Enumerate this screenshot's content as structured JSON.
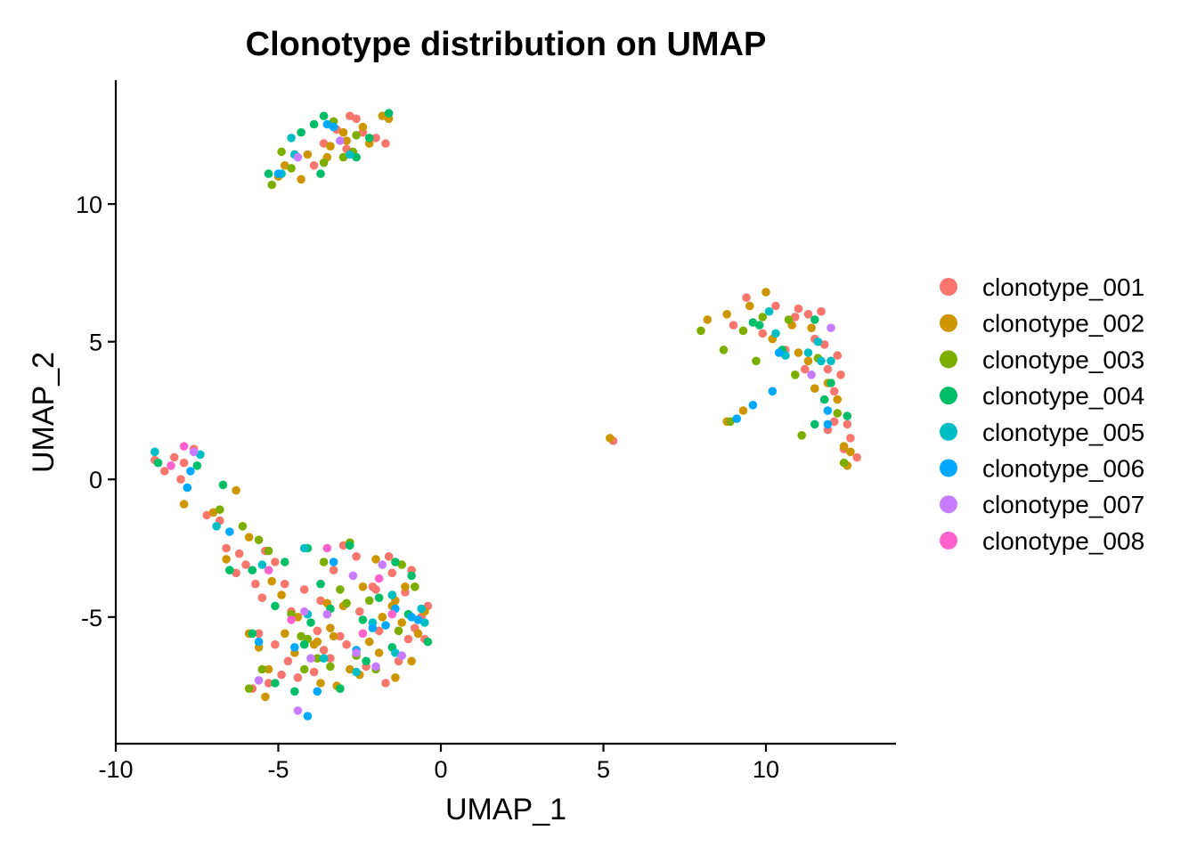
{
  "chart_data": {
    "type": "scatter",
    "title": "Clonotype distribution on UMAP",
    "xlabel": "UMAP_1",
    "ylabel": "UMAP_2",
    "xlim": [
      -10,
      14
    ],
    "ylim": [
      -9.6,
      14.5
    ],
    "x_ticks": [
      -10,
      -5,
      0,
      5,
      10
    ],
    "x_tick_labels": [
      "-10",
      "-5",
      "0",
      "5",
      "10"
    ],
    "y_ticks": [
      -5,
      0,
      5,
      10
    ],
    "y_tick_labels": [
      "-5",
      "0",
      "5",
      "10"
    ],
    "grid": false,
    "legend_position": "right",
    "series": [
      {
        "name": "clonotype_001",
        "color": "#F8766D",
        "points": [
          [
            -2.8,
            13.2
          ],
          [
            -2.6,
            13.1
          ],
          [
            -3.2,
            12.7
          ],
          [
            -2.0,
            12.4
          ],
          [
            -1.7,
            12.2
          ],
          [
            -3.6,
            12.2
          ],
          [
            -4.5,
            11.8
          ],
          [
            -2.9,
            12.0
          ],
          [
            -3.9,
            11.4
          ],
          [
            -2.4,
            12.6
          ],
          [
            -8.8,
            0.7
          ],
          [
            -8.2,
            0.8
          ],
          [
            -7.6,
            1.1
          ],
          [
            -8.5,
            0.3
          ],
          [
            -7.9,
            0.6
          ],
          [
            -8.0,
            0.0
          ],
          [
            -7.2,
            -1.3
          ],
          [
            -6.8,
            -1.5
          ],
          [
            -6.6,
            -2.5
          ],
          [
            -6.2,
            -2.7
          ],
          [
            -6.0,
            -3.1
          ],
          [
            -5.7,
            -3.8
          ],
          [
            -5.4,
            -2.6
          ],
          [
            -5.1,
            -3.0
          ],
          [
            -4.8,
            -3.8
          ],
          [
            -5.6,
            -5.6
          ],
          [
            -5.1,
            -6.0
          ],
          [
            -4.7,
            -6.6
          ],
          [
            -4.4,
            -7.2
          ],
          [
            -3.9,
            -7.0
          ],
          [
            -3.4,
            -6.5
          ],
          [
            -2.9,
            -6.0
          ],
          [
            -2.3,
            -6.8
          ],
          [
            -1.7,
            -7.4
          ],
          [
            -1.3,
            -6.6
          ],
          [
            -0.8,
            -5.4
          ],
          [
            -0.5,
            -5.8
          ],
          [
            -0.4,
            -4.6
          ],
          [
            -1.1,
            -4.1
          ],
          [
            -1.5,
            -3.4
          ],
          [
            -2.0,
            -4.0
          ],
          [
            -2.5,
            -4.8
          ],
          [
            -3.1,
            -5.7
          ],
          [
            -3.7,
            -4.4
          ],
          [
            -4.2,
            -4.0
          ],
          [
            -4.6,
            -4.8
          ],
          [
            -3.3,
            -3.3
          ],
          [
            -2.1,
            -3.9
          ],
          [
            -1.9,
            -5.5
          ],
          [
            -1.0,
            -5.8
          ],
          [
            -5.8,
            -7.6
          ],
          [
            -5.3,
            -7.4
          ],
          [
            -4.9,
            -7.1
          ],
          [
            -3.6,
            -6.2
          ],
          [
            -1.6,
            -2.8
          ],
          [
            -0.9,
            -3.3
          ],
          [
            -2.6,
            -2.8
          ],
          [
            -3.8,
            -5.5
          ],
          [
            -5.5,
            -4.3
          ],
          [
            -6.3,
            -3.4
          ],
          [
            9.4,
            6.6
          ],
          [
            10.3,
            6.3
          ],
          [
            11.0,
            6.2
          ],
          [
            11.3,
            6.0
          ],
          [
            11.7,
            6.1
          ],
          [
            10.9,
            5.9
          ],
          [
            11.5,
            5.1
          ],
          [
            11.8,
            4.9
          ],
          [
            12.2,
            4.5
          ],
          [
            11.9,
            4.0
          ],
          [
            12.3,
            3.8
          ],
          [
            12.1,
            3.2
          ],
          [
            12.5,
            2.0
          ],
          [
            12.6,
            1.5
          ],
          [
            12.8,
            0.8
          ],
          [
            12.4,
            1.1
          ],
          [
            11.9,
            1.8
          ],
          [
            11.2,
            4.0
          ],
          [
            10.6,
            4.7
          ],
          [
            9.9,
            5.3
          ],
          [
            9.0,
            5.6
          ],
          [
            5.3,
            1.4
          ],
          [
            12.1,
            2.1
          ],
          [
            -0.6,
            -5.0
          ],
          [
            -3.0,
            -2.4
          ]
        ]
      },
      {
        "name": "clonotype_002",
        "color": "#CD9600",
        "points": [
          [
            -1.8,
            13.2
          ],
          [
            -1.6,
            13.1
          ],
          [
            -2.4,
            12.8
          ],
          [
            -3.0,
            12.6
          ],
          [
            -3.4,
            12.1
          ],
          [
            -2.2,
            12.2
          ],
          [
            -4.1,
            11.8
          ],
          [
            -4.8,
            11.4
          ],
          [
            -5.0,
            11.0
          ],
          [
            -4.3,
            10.9
          ],
          [
            -3.5,
            11.7
          ],
          [
            -2.9,
            12.3
          ],
          [
            -7.9,
            -0.9
          ],
          [
            -7.0,
            -1.2
          ],
          [
            -6.3,
            -0.4
          ],
          [
            -6.6,
            -2.9
          ],
          [
            -5.9,
            -2.1
          ],
          [
            -5.2,
            -3.7
          ],
          [
            -4.4,
            -5.0
          ],
          [
            -4.8,
            -5.6
          ],
          [
            -3.9,
            -6.0
          ],
          [
            -3.4,
            -5.4
          ],
          [
            -2.8,
            -6.9
          ],
          [
            -2.2,
            -5.9
          ],
          [
            -1.8,
            -5.0
          ],
          [
            -1.2,
            -5.2
          ],
          [
            -0.7,
            -5.6
          ],
          [
            -0.5,
            -4.8
          ],
          [
            -1.5,
            -4.6
          ],
          [
            -2.4,
            -3.9
          ],
          [
            -3.0,
            -4.6
          ],
          [
            -3.5,
            -4.5
          ],
          [
            -4.9,
            -4.2
          ],
          [
            -5.6,
            -6.1
          ],
          [
            -5.3,
            -6.9
          ],
          [
            -4.5,
            -6.3
          ],
          [
            -3.7,
            -7.4
          ],
          [
            -3.2,
            -7.5
          ],
          [
            -2.5,
            -7.1
          ],
          [
            -1.9,
            -6.3
          ],
          [
            -1.4,
            -7.2
          ],
          [
            -0.9,
            -6.6
          ],
          [
            -5.9,
            -5.6
          ],
          [
            -5.4,
            -7.9
          ],
          [
            -3.3,
            -5.7
          ],
          [
            -2.0,
            -2.9
          ],
          [
            -1.1,
            -3.9
          ],
          [
            8.2,
            5.8
          ],
          [
            8.8,
            6.0
          ],
          [
            9.5,
            6.3
          ],
          [
            10.0,
            6.8
          ],
          [
            10.8,
            5.6
          ],
          [
            11.4,
            5.5
          ],
          [
            11.9,
            3.5
          ],
          [
            12.2,
            2.9
          ],
          [
            12.4,
            1.2
          ],
          [
            12.5,
            0.5
          ],
          [
            12.6,
            1.0
          ],
          [
            11.5,
            3.3
          ],
          [
            10.5,
            4.6
          ],
          [
            10.2,
            5.1
          ],
          [
            11.0,
            4.6
          ],
          [
            11.3,
            4.3
          ],
          [
            9.3,
            2.5
          ],
          [
            8.8,
            2.1
          ],
          [
            5.2,
            1.5
          ],
          [
            -3.8,
            -5.9
          ],
          [
            -1.4,
            -4.4
          ]
        ]
      },
      {
        "name": "clonotype_003",
        "color": "#7CAE00",
        "points": [
          [
            -5.2,
            10.7
          ],
          [
            -4.6,
            11.3
          ],
          [
            -3.6,
            11.5
          ],
          [
            -3.0,
            11.7
          ],
          [
            -2.6,
            12.5
          ],
          [
            -3.3,
            13.0
          ],
          [
            -4.9,
            11.9
          ],
          [
            -2.7,
            11.9
          ],
          [
            -6.8,
            -1.1
          ],
          [
            -6.1,
            -1.7
          ],
          [
            -5.6,
            -2.2
          ],
          [
            -5.3,
            -2.6
          ],
          [
            -4.6,
            -4.9
          ],
          [
            -4.3,
            -5.7
          ],
          [
            -3.8,
            -6.5
          ],
          [
            -2.9,
            -4.5
          ],
          [
            -2.2,
            -4.4
          ],
          [
            -1.5,
            -4.2
          ],
          [
            -0.8,
            -3.9
          ],
          [
            -1.3,
            -5.5
          ],
          [
            -2.0,
            -6.9
          ],
          [
            -2.6,
            -6.4
          ],
          [
            -3.4,
            -6.8
          ],
          [
            -4.2,
            -6.9
          ],
          [
            -5.5,
            -6.9
          ],
          [
            -5.9,
            -7.6
          ],
          [
            -3.1,
            -4.0
          ],
          [
            -1.2,
            -3.1
          ],
          [
            -2.8,
            -2.3
          ],
          [
            -3.6,
            -3.0
          ],
          [
            8.0,
            5.4
          ],
          [
            8.7,
            4.7
          ],
          [
            9.3,
            5.4
          ],
          [
            9.9,
            5.9
          ],
          [
            10.7,
            5.8
          ],
          [
            11.6,
            4.4
          ],
          [
            12.2,
            2.4
          ],
          [
            12.4,
            0.6
          ],
          [
            11.1,
            1.6
          ],
          [
            9.7,
            4.3
          ],
          [
            10.9,
            3.8
          ],
          [
            8.9,
            2.1
          ],
          [
            -4.1,
            -5.8
          ]
        ]
      },
      {
        "name": "clonotype_004",
        "color": "#00BE67",
        "points": [
          [
            -3.9,
            12.9
          ],
          [
            -3.6,
            13.2
          ],
          [
            -2.2,
            12.4
          ],
          [
            -1.6,
            13.3
          ],
          [
            -4.3,
            12.6
          ],
          [
            -2.6,
            11.7
          ],
          [
            -5.3,
            11.1
          ],
          [
            -3.7,
            11.1
          ],
          [
            -8.7,
            0.6
          ],
          [
            -7.5,
            0.5
          ],
          [
            -6.7,
            -0.2
          ],
          [
            -6.5,
            -3.3
          ],
          [
            -5.8,
            -3.3
          ],
          [
            -5.1,
            -4.6
          ],
          [
            -4.1,
            -2.5
          ],
          [
            -4.0,
            -5.2
          ],
          [
            -3.7,
            -3.8
          ],
          [
            -2.8,
            -2.4
          ],
          [
            -1.4,
            -3.0
          ],
          [
            -1.9,
            -4.3
          ],
          [
            -1.0,
            -4.9
          ],
          [
            -0.4,
            -5.9
          ],
          [
            -1.5,
            -6.1
          ],
          [
            -2.3,
            -6.6
          ],
          [
            -3.1,
            -7.6
          ],
          [
            -4.5,
            -7.7
          ],
          [
            -5.1,
            -7.4
          ],
          [
            -4.2,
            -6.0
          ],
          [
            -3.4,
            -4.7
          ],
          [
            -2.4,
            -5.1
          ],
          [
            -5.8,
            -5.6
          ],
          [
            -4.8,
            -3.0
          ],
          [
            9.6,
            5.7
          ],
          [
            9.8,
            5.6
          ],
          [
            11.5,
            5.8
          ],
          [
            11.8,
            2.9
          ],
          [
            12.5,
            2.3
          ],
          [
            10.5,
            4.7
          ],
          [
            12.0,
            3.5
          ],
          [
            11.5,
            2.0
          ],
          [
            -0.9,
            -3.5
          ]
        ]
      },
      {
        "name": "clonotype_005",
        "color": "#00BFC4",
        "points": [
          [
            -4.6,
            12.4
          ],
          [
            -3.3,
            12.8
          ],
          [
            -2.8,
            11.8
          ],
          [
            -4.9,
            11.1
          ],
          [
            -4.5,
            11.8
          ],
          [
            -8.8,
            1.0
          ],
          [
            -7.4,
            0.9
          ],
          [
            -6.9,
            -1.7
          ],
          [
            -5.5,
            -3.1
          ],
          [
            -4.2,
            -2.5
          ],
          [
            -3.6,
            -6.5
          ],
          [
            -2.6,
            -7.0
          ],
          [
            -1.4,
            -6.3
          ],
          [
            -0.6,
            -4.7
          ],
          [
            -1.5,
            -4.2
          ],
          [
            -4.1,
            -4.9
          ],
          [
            -0.5,
            -5.2
          ],
          [
            10.3,
            5.3
          ],
          [
            10.6,
            4.5
          ],
          [
            11.7,
            4.3
          ],
          [
            12.0,
            4.3
          ],
          [
            11.6,
            5.0
          ],
          [
            10.1,
            6.1
          ],
          [
            11.3,
            4.6
          ],
          [
            -2.1,
            -5.2
          ]
        ]
      },
      {
        "name": "clonotype_006",
        "color": "#00A9FF",
        "points": [
          [
            -3.5,
            12.9
          ],
          [
            -3.3,
            12.8
          ],
          [
            -5.0,
            11.1
          ],
          [
            -7.7,
            0.3
          ],
          [
            -6.5,
            -1.9
          ],
          [
            -7.8,
            -0.3
          ],
          [
            -5.6,
            -5.9
          ],
          [
            -4.5,
            -6.1
          ],
          [
            -3.8,
            -7.7
          ],
          [
            -4.1,
            -8.6
          ],
          [
            -2.6,
            -6.2
          ],
          [
            -2.1,
            -5.4
          ],
          [
            -1.4,
            -4.7
          ],
          [
            -0.7,
            -5.1
          ],
          [
            -1.7,
            -5.3
          ],
          [
            -0.9,
            -5.0
          ],
          [
            9.1,
            2.2
          ],
          [
            9.6,
            2.7
          ],
          [
            10.2,
            3.2
          ],
          [
            11.9,
            2.5
          ],
          [
            11.9,
            2.0
          ],
          [
            10.4,
            4.6
          ],
          [
            -3.3,
            -3.0
          ]
        ]
      },
      {
        "name": "clonotype_007",
        "color": "#C77CFF",
        "points": [
          [
            -4.4,
            11.7
          ],
          [
            -3.1,
            12.3
          ],
          [
            -7.6,
            1.0
          ],
          [
            -5.6,
            -7.3
          ],
          [
            -4.4,
            -8.4
          ],
          [
            -4.0,
            -6.5
          ],
          [
            -2.6,
            -6.3
          ],
          [
            -1.8,
            -3.1
          ],
          [
            -2.0,
            -6.8
          ],
          [
            -1.2,
            -6.4
          ],
          [
            -4.2,
            -4.8
          ],
          [
            -2.7,
            -3.5
          ],
          [
            11.4,
            3.8
          ],
          [
            12.0,
            5.5
          ],
          [
            -3.5,
            -4.9
          ]
        ]
      },
      {
        "name": "clonotype_008",
        "color": "#FF61CC",
        "points": [
          [
            -7.9,
            1.2
          ],
          [
            -8.3,
            0.5
          ],
          [
            -4.6,
            -5.1
          ],
          [
            -3.5,
            -2.5
          ],
          [
            -1.9,
            -3.6
          ],
          [
            -1.5,
            -4.9
          ],
          [
            -5.3,
            -3.3
          ],
          [
            -2.4,
            -5.6
          ]
        ]
      }
    ]
  }
}
